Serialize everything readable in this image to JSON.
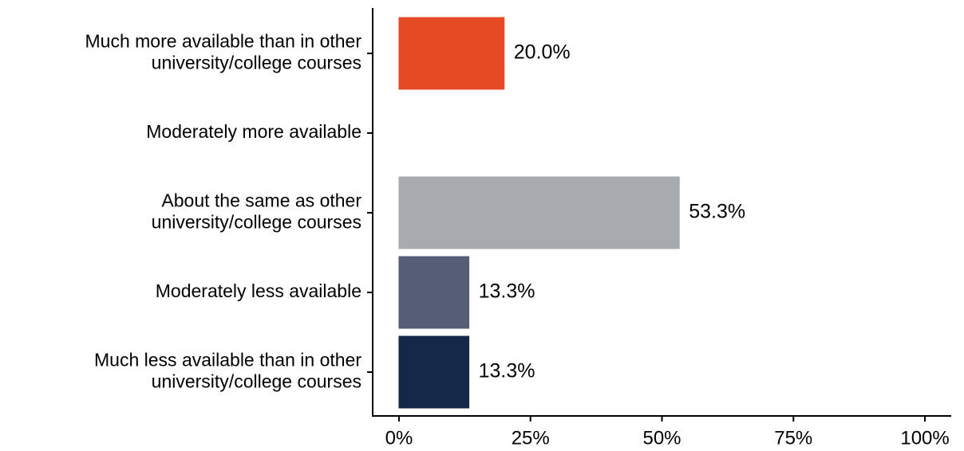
{
  "chart_data": {
    "type": "barh",
    "categories": [
      [
        "Much more available than in other",
        "university/college courses"
      ],
      [
        "Moderately more available"
      ],
      [
        "About the same as other",
        "university/college courses"
      ],
      [
        "Moderately less available"
      ],
      [
        "Much less available than in other",
        "university/college courses"
      ]
    ],
    "values": [
      20.0,
      0,
      53.3,
      13.3,
      13.3
    ],
    "value_labels": [
      "20.0%",
      null,
      "53.3%",
      "13.3%",
      "13.3%"
    ],
    "colors": [
      "#e64a25",
      "#c8a27a",
      "#a7abaf",
      "#555e75",
      "#14294a"
    ],
    "xlim": [
      -5,
      105
    ],
    "xticks": [
      {
        "value": 0,
        "label": "0%"
      },
      {
        "value": 25,
        "label": "25%"
      },
      {
        "value": 50,
        "label": "50%"
      },
      {
        "value": 75,
        "label": "75%"
      },
      {
        "value": 100,
        "label": "100%"
      }
    ],
    "grid": false
  }
}
